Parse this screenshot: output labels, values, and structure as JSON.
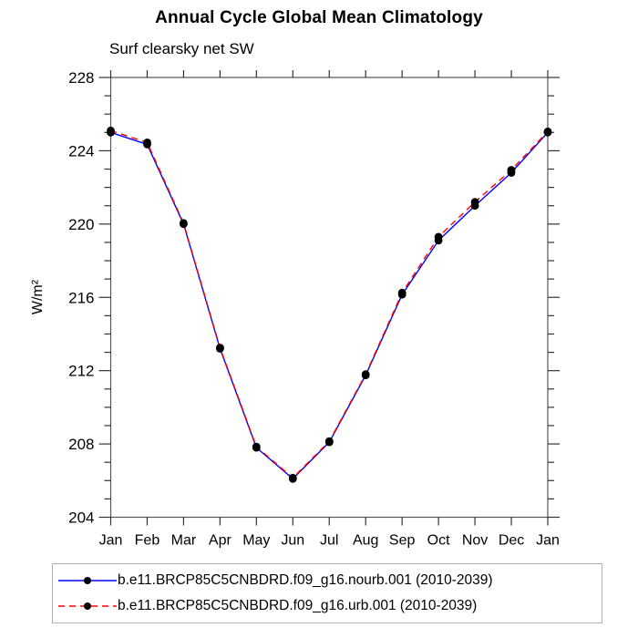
{
  "title": "Annual Cycle Global Mean Climatology",
  "subtitle": "Surf clearsky net SW",
  "chart_data": {
    "type": "line",
    "x": [
      "Jan",
      "Feb",
      "Mar",
      "Apr",
      "May",
      "Jun",
      "Jul",
      "Aug",
      "Sep",
      "Oct",
      "Nov",
      "Dec",
      "Jan"
    ],
    "ylabel": "W/m²",
    "ylim": [
      204,
      228
    ],
    "ytick_major_step": 4,
    "ytick_minor_step": 1,
    "ytick_labels": [
      "204",
      "208",
      "212",
      "216",
      "220",
      "224",
      "228"
    ],
    "grid": false,
    "legend_position": "bottom",
    "series": [
      {
        "name": "b.e11.BRCP85C5CNBDRD.f09_g16.nourb.001 (2010-2039)",
        "color": "#0000ff",
        "style": "solid",
        "marker": "circle",
        "marker_color": "#000000",
        "values": [
          225.0,
          224.35,
          220.0,
          213.2,
          207.8,
          206.1,
          208.1,
          211.75,
          216.15,
          219.1,
          221.0,
          222.8,
          225.0
        ]
      },
      {
        "name": "b.e11.BRCP85C5CNBDRD.f09_g16.urb.001 (2010-2039)",
        "color": "#ff0000",
        "style": "dashed",
        "marker": "circle",
        "marker_color": "#000000",
        "values": [
          225.1,
          224.45,
          220.05,
          213.25,
          207.85,
          206.15,
          208.15,
          211.8,
          216.25,
          219.3,
          221.2,
          222.95,
          225.05
        ]
      }
    ]
  },
  "colors": {
    "axis_frame": "#555555",
    "tick": "#333333",
    "text": "#000000",
    "legend_border": "#b0b0b0",
    "background": "#ffffff"
  }
}
